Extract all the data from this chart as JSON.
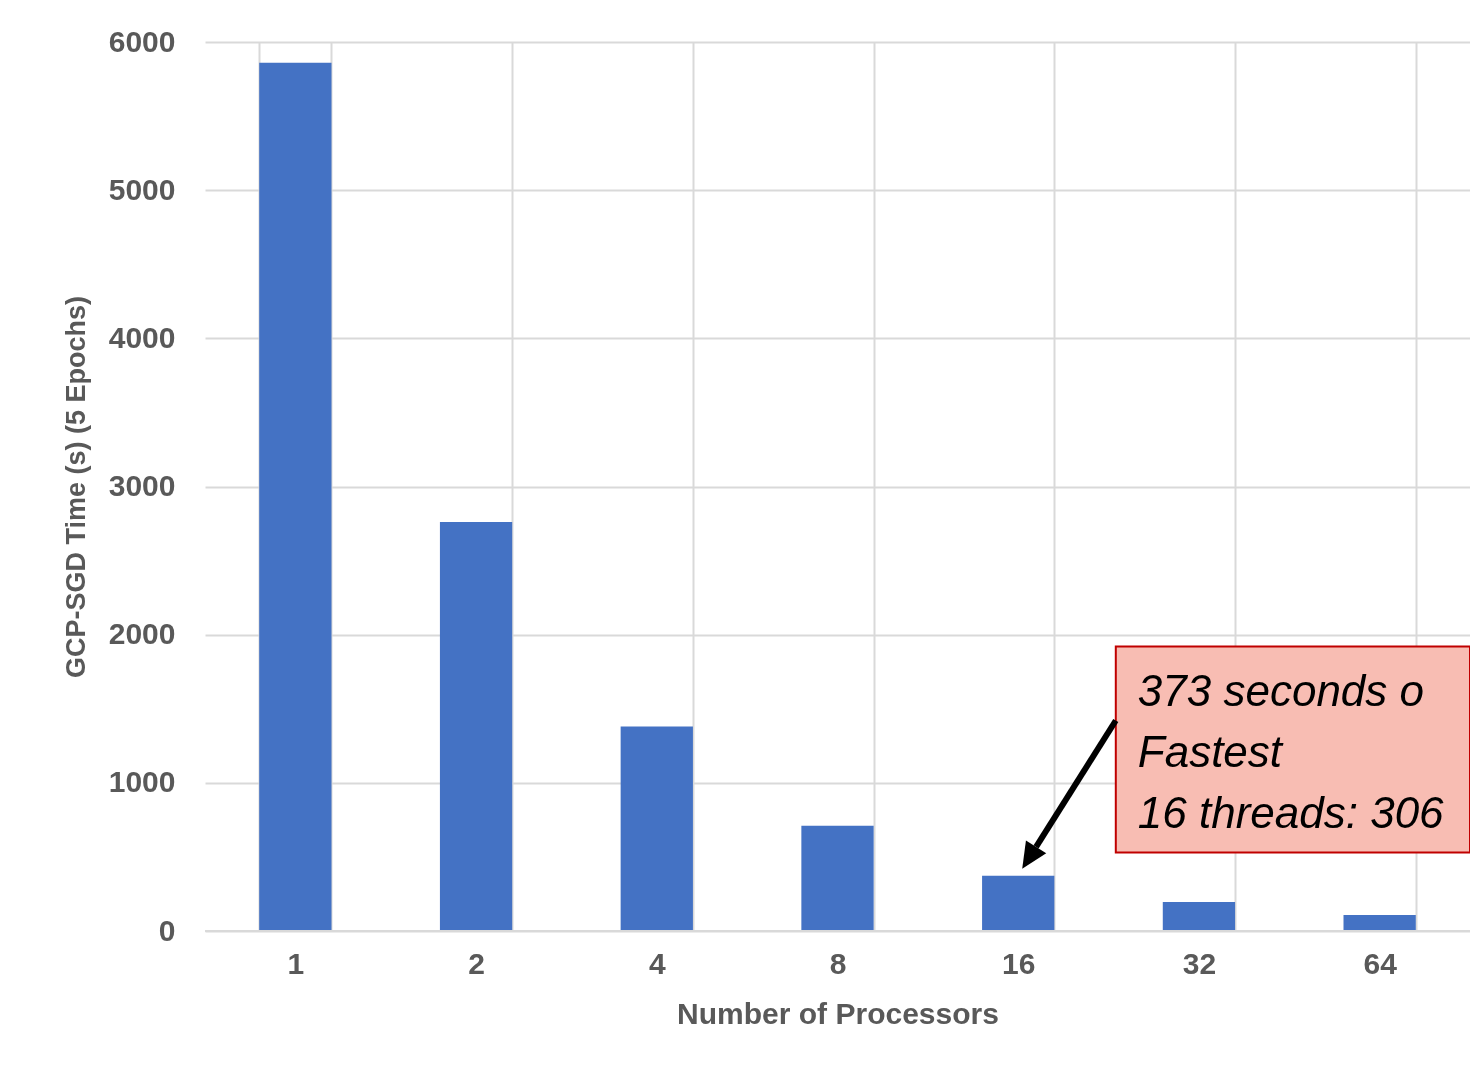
{
  "chart_data": {
    "type": "bar",
    "xlabel": "Number of Processors",
    "ylabel": "GCP-SGD Time (s) (5 Epochs)",
    "categories": [
      "1",
      "2",
      "4",
      "8",
      "16",
      "32",
      "64"
    ],
    "values": [
      5860,
      2760,
      1380,
      710,
      373,
      196,
      108
    ],
    "color": "#4472c4",
    "ylim": [
      0,
      6000
    ],
    "yticks": [
      0,
      1000,
      2000,
      3000,
      4000,
      5000,
      6000
    ],
    "grid": true,
    "annotations": [
      "373 seconds o\nFastest\n16 threads: 306"
    ]
  }
}
